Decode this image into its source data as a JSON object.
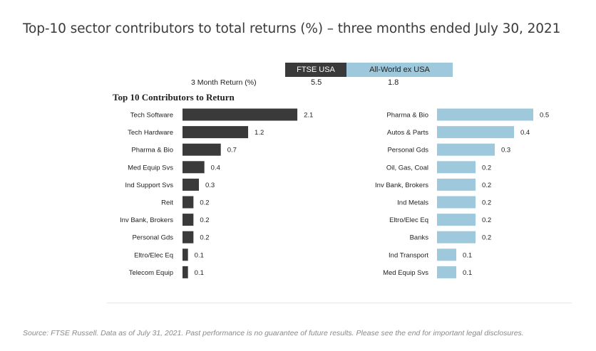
{
  "title": "Top-10 sector contributors to total returns (%) – three months ended July 30, 2021",
  "legend": {
    "ftse_label": "FTSE USA",
    "aw_label": "All-World ex USA"
  },
  "returns": {
    "label": "3 Month Return (%)",
    "ftse": "5.5",
    "aw": "1.8"
  },
  "subtitle": "Top 10 Contributors to Return",
  "source": "Source: FTSE Russell. Data as of July 31, 2021. Past performance is no guarantee of future results. Please see the end for important legal disclosures.",
  "colors": {
    "ftse": "#3a3a3a",
    "aw": "#9ec9dd"
  },
  "chart_data": [
    {
      "type": "bar",
      "orientation": "horizontal",
      "name": "FTSE USA",
      "categories": [
        "Tech Software",
        "Tech Hardware",
        "Pharma & Bio",
        "Med Equip Svs",
        "Ind Support Svs",
        "Reit",
        "Inv Bank, Brokers",
        "Personal Gds",
        "Eltro/Elec Eq",
        "Telecom Equip"
      ],
      "values": [
        2.1,
        1.2,
        0.7,
        0.4,
        0.3,
        0.2,
        0.2,
        0.2,
        0.1,
        0.1
      ],
      "labels": [
        "2.1",
        "1.2",
        "0.7",
        "0.4",
        "0.3",
        "0.2",
        "0.2",
        "0.2",
        "0.1",
        "0.1"
      ],
      "color": "#3a3a3a"
    },
    {
      "type": "bar",
      "orientation": "horizontal",
      "name": "All-World ex USA",
      "categories": [
        "Pharma & Bio",
        "Autos & Parts",
        "Personal Gds",
        "Oil, Gas, Coal",
        "Inv Bank, Brokers",
        "Ind Metals",
        "Eltro/Elec Eq",
        "Banks",
        "Ind Transport",
        "Med Equip Svs"
      ],
      "values": [
        0.5,
        0.4,
        0.3,
        0.2,
        0.2,
        0.2,
        0.2,
        0.2,
        0.1,
        0.1
      ],
      "labels": [
        "0.5",
        "0.4",
        "0.3",
        "0.2",
        "0.2",
        "0.2",
        "0.2",
        "0.2",
        "0.1",
        "0.1"
      ],
      "color": "#9ec9dd"
    }
  ]
}
